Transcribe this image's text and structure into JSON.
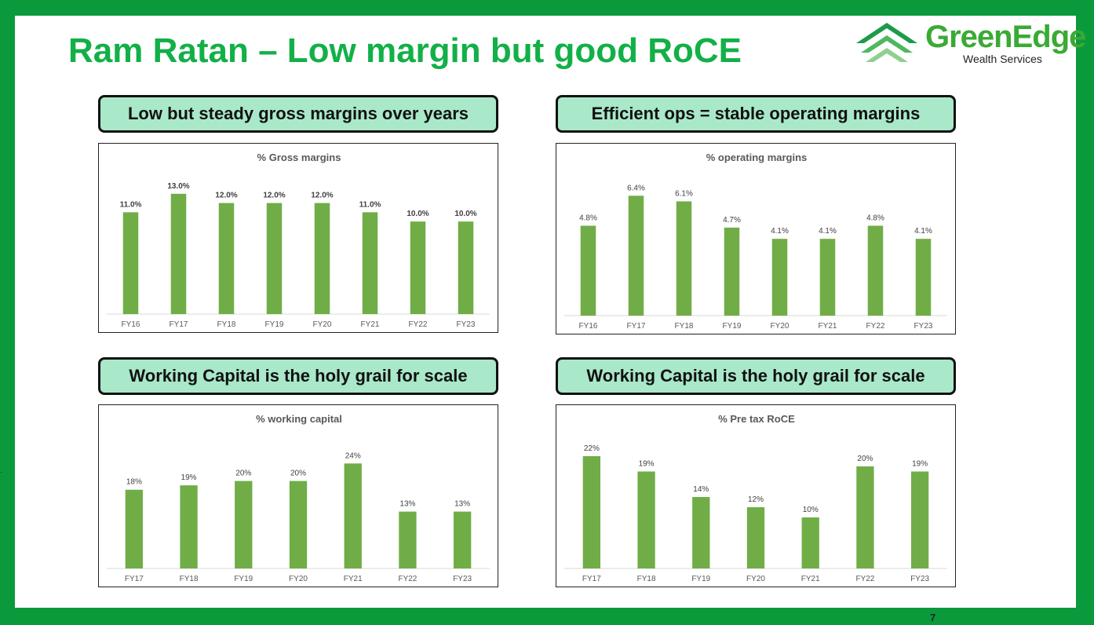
{
  "slide": {
    "title": "Ram Ratan – Low margin but good RoCE",
    "logo": {
      "name": "GreenEdge",
      "tagline": "Wealth Services",
      "icon": "chevron-stack-icon"
    },
    "page_number": "7",
    "edge_mark": "."
  },
  "captions": [
    "Low but steady gross margins over years",
    "Efficient ops = stable operating margins",
    "Working Capital is the holy grail for scale",
    "Working Capital is the holy grail for scale"
  ],
  "colors": {
    "bar": "#70ad47",
    "title": "#12b047",
    "caption_bg": "#a9e8c9",
    "frame": "#0a9a3c"
  },
  "chart_data": [
    {
      "type": "bar",
      "title": "% Gross margins",
      "categories": [
        "FY16",
        "FY17",
        "FY18",
        "FY19",
        "FY20",
        "FY21",
        "FY22",
        "FY23"
      ],
      "values": [
        11.0,
        13.0,
        12.0,
        12.0,
        12.0,
        11.0,
        10.0,
        10.0
      ],
      "labels": [
        "11.0%",
        "13.0%",
        "12.0%",
        "12.0%",
        "12.0%",
        "11.0%",
        "10.0%",
        "10.0%"
      ],
      "ylim": [
        0,
        14
      ],
      "bold_labels": true,
      "grid": false
    },
    {
      "type": "bar",
      "title": "% operating margins",
      "categories": [
        "FY16",
        "FY17",
        "FY18",
        "FY19",
        "FY20",
        "FY21",
        "FY22",
        "FY23"
      ],
      "values": [
        4.8,
        6.4,
        6.1,
        4.7,
        4.1,
        4.1,
        4.8,
        4.1
      ],
      "labels": [
        "4.8%",
        "6.4%",
        "6.1%",
        "4.7%",
        "4.1%",
        "4.1%",
        "4.8%",
        "4.1%"
      ],
      "ylim": [
        0,
        7
      ],
      "bold_labels": false,
      "grid": false
    },
    {
      "type": "bar",
      "title": "% working capital",
      "categories": [
        "FY17",
        "FY18",
        "FY19",
        "FY20",
        "FY21",
        "FY22",
        "FY23"
      ],
      "values": [
        18,
        19,
        20,
        20,
        24,
        13,
        13
      ],
      "labels": [
        "18%",
        "19%",
        "20%",
        "20%",
        "24%",
        "13%",
        "13%"
      ],
      "ylim": [
        0,
        28
      ],
      "bold_labels": false,
      "grid": false
    },
    {
      "type": "bar",
      "title": "% Pre tax RoCE",
      "categories": [
        "FY17",
        "FY18",
        "FY19",
        "FY20",
        "FY21",
        "FY22",
        "FY23"
      ],
      "values": [
        22,
        19,
        14,
        12,
        10,
        20,
        19
      ],
      "labels": [
        "22%",
        "19%",
        "14%",
        "12%",
        "10%",
        "20%",
        "19%"
      ],
      "ylim": [
        0,
        24
      ],
      "bold_labels": false,
      "grid": false
    }
  ]
}
